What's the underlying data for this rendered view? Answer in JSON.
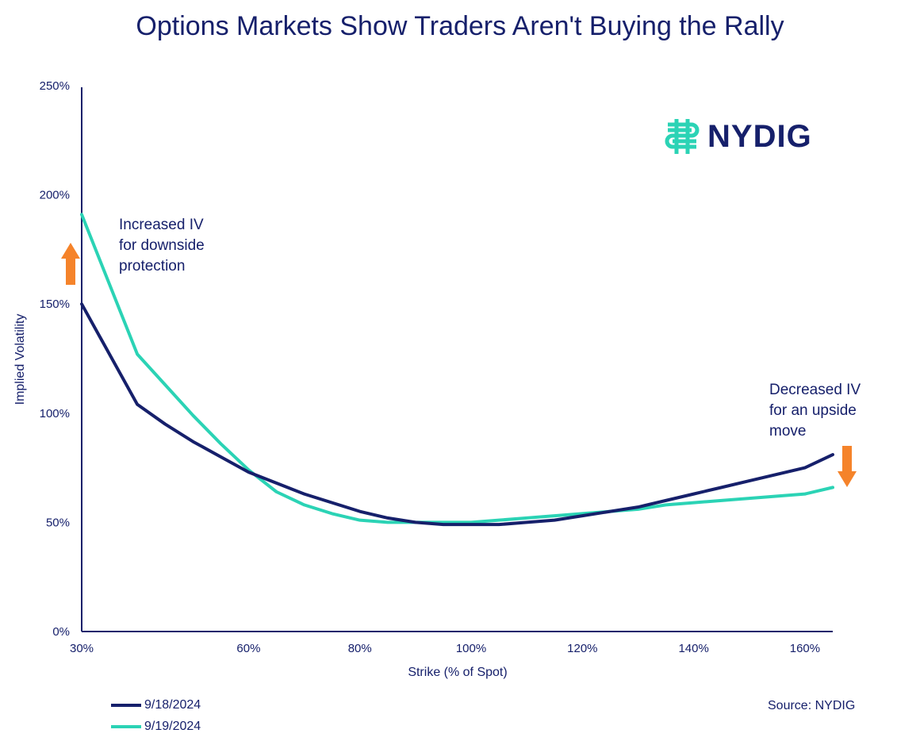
{
  "chart_data": {
    "type": "line",
    "title": "Options Markets Show Traders Aren't Buying the Rally",
    "xlabel": "Strike (% of Spot)",
    "ylabel": "Implied Volatility",
    "xlim": [
      30,
      165
    ],
    "ylim": [
      0,
      250
    ],
    "x_ticks": [
      30,
      60,
      80,
      100,
      120,
      140,
      160
    ],
    "x_tick_labels": [
      "30%",
      "60%",
      "80%",
      "100%",
      "120%",
      "140%",
      "160%"
    ],
    "y_ticks": [
      0,
      50,
      100,
      150,
      200,
      250
    ],
    "y_tick_labels": [
      "0%",
      "50%",
      "100%",
      "150%",
      "200%",
      "250%"
    ],
    "grid": false,
    "legend_position": "bottom-left",
    "series": [
      {
        "name": "9/18/2024",
        "color": "#16206b",
        "x": [
          30,
          40,
          45,
          50,
          55,
          60,
          65,
          70,
          75,
          80,
          85,
          90,
          95,
          100,
          105,
          110,
          115,
          120,
          125,
          130,
          135,
          140,
          145,
          150,
          155,
          160,
          165
        ],
        "y": [
          150,
          104,
          95,
          87,
          80,
          73,
          68,
          63,
          59,
          55,
          52,
          50,
          49,
          49,
          49,
          50,
          51,
          53,
          55,
          57,
          60,
          63,
          66,
          69,
          72,
          75,
          81
        ]
      },
      {
        "name": "9/19/2024",
        "color": "#2bd3b5",
        "x": [
          30,
          40,
          45,
          50,
          55,
          60,
          65,
          70,
          75,
          80,
          85,
          90,
          95,
          100,
          105,
          110,
          115,
          120,
          125,
          130,
          135,
          140,
          145,
          150,
          155,
          160,
          165
        ],
        "y": [
          191,
          127,
          113,
          99,
          86,
          74,
          64,
          58,
          54,
          51,
          50,
          50,
          50,
          50,
          51,
          52,
          53,
          54,
          55,
          56,
          58,
          59,
          60,
          61,
          62,
          63,
          66
        ]
      }
    ],
    "annotations": [
      {
        "text": "Increased IV\nfor downside\nprotection",
        "arrow": "up",
        "arrow_color": "#f5832a"
      },
      {
        "text": "Decreased IV\nfor an upside\nmove",
        "arrow": "down",
        "arrow_color": "#f5832a"
      }
    ]
  },
  "logo": {
    "text": "NYDIG",
    "icon": "nydig-logo-icon",
    "color": "#2bd3b5"
  },
  "source": "Source: NYDIG"
}
